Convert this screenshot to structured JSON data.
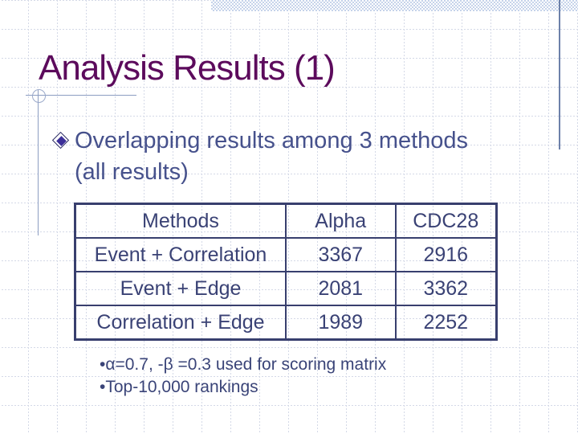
{
  "slide": {
    "title": "Analysis Results (1)",
    "bullet": {
      "line1": "Overlapping results among 3 methods",
      "line2": "(all results)"
    },
    "table": {
      "headers": [
        "Methods",
        "Alpha",
        "CDC28"
      ],
      "rows": [
        [
          "Event + Correlation",
          "3367",
          "2916"
        ],
        [
          "Event + Edge",
          "2081",
          "3362"
        ],
        [
          "Correlation + Edge",
          "1989",
          "2252"
        ]
      ]
    },
    "footnotes": [
      "•α=0.7, -β =0.3 used for scoring matrix",
      "•Top-10,000 rankings"
    ],
    "colors": {
      "title": "#5c0b5c",
      "body_text": "#46518c",
      "table_border": "#383f6e",
      "table_text": "#3a4275",
      "accent_line": "#8c9dc2",
      "band_blue": "#c6d3ea",
      "bullet_fill": "#3b2f98"
    }
  },
  "chart_data": {
    "type": "table",
    "title": "Overlapping results among 3 methods (all results)",
    "columns": [
      "Methods",
      "Alpha",
      "CDC28"
    ],
    "rows": [
      {
        "Methods": "Event + Correlation",
        "Alpha": 3367,
        "CDC28": 2916
      },
      {
        "Methods": "Event + Edge",
        "Alpha": 2081,
        "CDC28": 3362
      },
      {
        "Methods": "Correlation + Edge",
        "Alpha": 1989,
        "CDC28": 2252
      }
    ],
    "notes": [
      "α=0.7, -β =0.3 used for scoring matrix",
      "Top-10,000 rankings"
    ]
  }
}
